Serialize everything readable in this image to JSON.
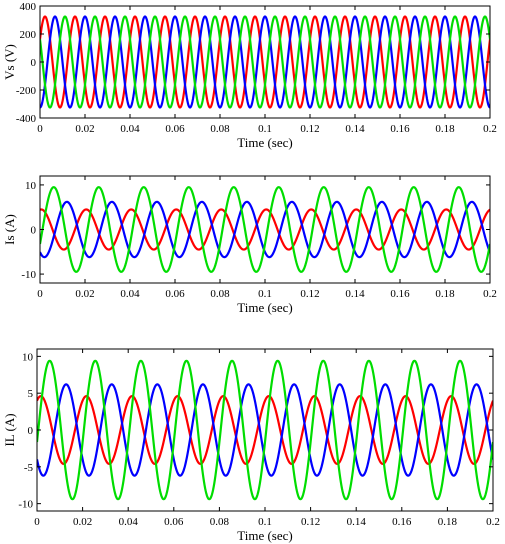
{
  "chart_data": [
    {
      "type": "line",
      "xlabel": "Time (sec)",
      "ylabel": "Vs (V)",
      "xlim": [
        0,
        0.2
      ],
      "ylim": [
        -400,
        400
      ],
      "x_ticks": [
        0,
        0.02,
        0.04,
        0.06,
        0.08,
        0.1,
        0.12,
        0.14,
        0.16,
        0.18,
        0.2
      ],
      "x_tick_labels": [
        "0",
        "0.02",
        "0.04",
        "0.06",
        "0.08",
        "0.1",
        "0.12",
        "0.14",
        "0.16",
        "0.18",
        "0.2"
      ],
      "y_ticks": [
        -400,
        -200,
        0,
        200,
        400
      ],
      "y_tick_labels": [
        "-400",
        "-200",
        "0",
        "200",
        "400"
      ],
      "grid": false,
      "frequency_hz": 75,
      "series": [
        {
          "color": "#ff0000",
          "amplitude": 325,
          "phase_deg": 30
        },
        {
          "color": "#0000ff",
          "amplitude": 325,
          "phase_deg": -90
        },
        {
          "color": "#00dd00",
          "amplitude": 325,
          "phase_deg": 150
        }
      ]
    },
    {
      "type": "line",
      "xlabel": "Time (sec)",
      "ylabel": "Is (A)",
      "xlim": [
        0,
        0.2
      ],
      "ylim": [
        -12,
        12
      ],
      "x_ticks": [
        0,
        0.02,
        0.04,
        0.06,
        0.08,
        0.1,
        0.12,
        0.14,
        0.16,
        0.18,
        0.2
      ],
      "x_tick_labels": [
        "0",
        "0.02",
        "0.04",
        "0.06",
        "0.08",
        "0.1",
        "0.12",
        "0.14",
        "0.16",
        "0.18",
        "0.2"
      ],
      "y_ticks": [
        -10,
        0,
        10
      ],
      "y_tick_labels": [
        "-10",
        "0",
        "10"
      ],
      "grid": false,
      "frequency_hz": 50,
      "series": [
        {
          "color": "#ff0000",
          "amplitude": 4.5,
          "phase_deg": 80
        },
        {
          "color": "#0000ff",
          "amplitude": 6.2,
          "phase_deg": -125
        },
        {
          "color": "#00dd00",
          "amplitude": 9.5,
          "phase_deg": -20
        }
      ]
    },
    {
      "type": "line",
      "xlabel": "Time (sec)",
      "ylabel": "IL (A)",
      "xlim": [
        0,
        0.2
      ],
      "ylim": [
        -11,
        11
      ],
      "x_ticks": [
        0,
        0.02,
        0.04,
        0.06,
        0.08,
        0.1,
        0.12,
        0.14,
        0.16,
        0.18,
        0.2
      ],
      "x_tick_labels": [
        "0",
        "0.02",
        "0.04",
        "0.06",
        "0.08",
        "0.1",
        "0.12",
        "0.14",
        "0.16",
        "0.18",
        "0.2"
      ],
      "y_ticks": [
        -10,
        -5,
        0,
        5,
        10
      ],
      "y_tick_labels": [
        "-10",
        "-5",
        "0",
        "5",
        "10"
      ],
      "grid": false,
      "frequency_hz": 50,
      "series": [
        {
          "color": "#ff0000",
          "amplitude": 4.6,
          "phase_deg": 60
        },
        {
          "color": "#0000ff",
          "amplitude": 6.2,
          "phase_deg": -140
        },
        {
          "color": "#00dd00",
          "amplitude": 9.4,
          "phase_deg": -10
        }
      ]
    }
  ]
}
